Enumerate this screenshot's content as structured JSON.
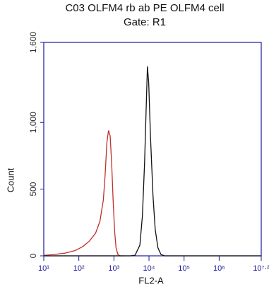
{
  "chart_data": {
    "type": "line",
    "title": "C03 OLFM4 rb ab PE OLFM4 cell",
    "subtitle": "Gate: R1",
    "x_label": "FL2-A",
    "y_label": "Count",
    "log_x": true,
    "xlim": [
      10,
      15848932
    ],
    "xticks": [
      {
        "value": 10,
        "label": "10¹"
      },
      {
        "value": 100,
        "label": "10²"
      },
      {
        "value": 1000,
        "label": "10³"
      },
      {
        "value": 10000,
        "label": "10⁴"
      },
      {
        "value": 100000,
        "label": "10⁵"
      },
      {
        "value": 1000000,
        "label": "10⁶"
      },
      {
        "value": 15848932,
        "label": "10⁷·²"
      }
    ],
    "ylim": [
      0,
      1600
    ],
    "yticks": [
      0,
      500,
      {
        "value": 1000,
        "label": "1,000"
      },
      {
        "value": 1600,
        "label": "1,600"
      }
    ],
    "series": [
      {
        "color": "#c0302a",
        "x": [
          10,
          20,
          40,
          80,
          130,
          200,
          300,
          400,
          500,
          560,
          630,
          700,
          780,
          860,
          950,
          1050,
          1150,
          1300,
          1500,
          2000
        ],
        "values": [
          3,
          10,
          20,
          40,
          70,
          110,
          170,
          260,
          420,
          600,
          850,
          940,
          900,
          700,
          420,
          180,
          60,
          10,
          0,
          0
        ]
      },
      {
        "color": "#111111",
        "x": [
          10,
          3000,
          4000,
          5500,
          6500,
          7500,
          8300,
          9000,
          9800,
          11000,
          13000,
          15000,
          18000,
          22000,
          28000,
          15848932
        ],
        "values": [
          0,
          0,
          5,
          80,
          300,
          700,
          1100,
          1420,
          1300,
          900,
          450,
          200,
          60,
          10,
          0,
          0
        ]
      }
    ]
  }
}
